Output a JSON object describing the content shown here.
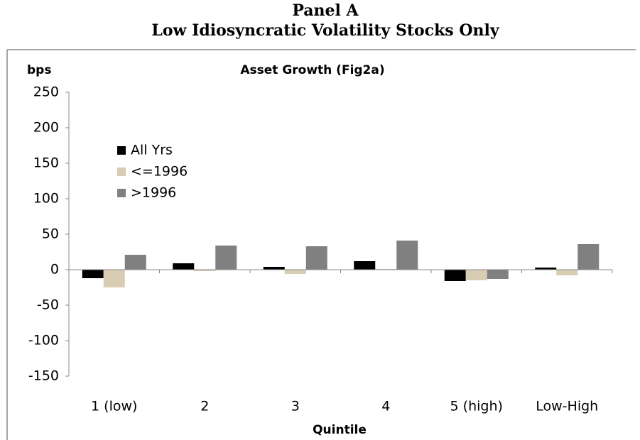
{
  "chart_data": {
    "type": "bar",
    "panel_title": "Panel A",
    "panel_subtitle": "Low Idiosyncratic Volatility Stocks Only",
    "title": "Asset Growth (Fig2a)",
    "y_label": "bps",
    "x_label": "Quintile",
    "categories": [
      "1 (low)",
      "2",
      "3",
      "4",
      "5 (high)",
      "Low-High"
    ],
    "series": [
      {
        "name": "All Yrs",
        "color": "#000000",
        "values": [
          -12,
          9,
          4,
          12,
          -16,
          3
        ]
      },
      {
        "name": "<=1996",
        "color": "#d8ccb2",
        "values": [
          -25,
          -2,
          -6,
          1,
          -15,
          -8
        ]
      },
      {
        "name": ">1996",
        "color": "#808080",
        "values": [
          21,
          34,
          33,
          41,
          -13,
          36
        ]
      }
    ],
    "ylim": [
      -150,
      250
    ],
    "yticks": [
      -150,
      -100,
      -50,
      0,
      50,
      100,
      150,
      200,
      250
    ],
    "legend": "upper left"
  }
}
